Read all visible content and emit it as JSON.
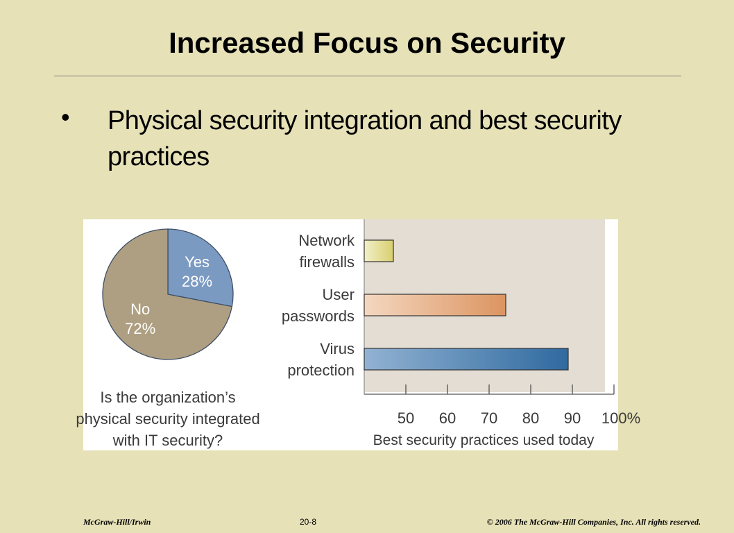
{
  "slide": {
    "title": "Increased Focus on Security",
    "bullet": "Physical security integration and best security practices"
  },
  "footer": {
    "publisher": "McGraw-Hill/Irwin",
    "page": "20-8",
    "copyright": "© 2006  The McGraw-Hill Companies, Inc. All rights reserved."
  },
  "chart_data": [
    {
      "type": "pie",
      "caption": [
        "Is the organization’s",
        "physical security integrated",
        "with IT security?"
      ],
      "slices": [
        {
          "label": "Yes",
          "value": 28,
          "value_label": "28%",
          "color": "#7b9ac2"
        },
        {
          "label": "No",
          "value": 72,
          "value_label": "72%",
          "color": "#ae9f82"
        }
      ]
    },
    {
      "type": "bar",
      "orientation": "horizontal",
      "categories": [
        {
          "lines": [
            "Network",
            "firewalls"
          ]
        },
        {
          "lines": [
            "User",
            "passwords"
          ]
        },
        {
          "lines": [
            "Virus",
            "protection"
          ]
        }
      ],
      "values": [
        47,
        74,
        89
      ],
      "bar_colors": [
        "#e3dc8c",
        "#e6a882",
        "#4d7fb0"
      ],
      "xlim": [
        40,
        100
      ],
      "ticks": [
        50,
        60,
        70,
        80,
        90,
        100
      ],
      "tick_labels": [
        "50",
        "60",
        "70",
        "80",
        "90",
        "100%"
      ],
      "xlabel": "Best security practices used today",
      "grid": false,
      "plot_background": "#e3ddd3"
    }
  ]
}
